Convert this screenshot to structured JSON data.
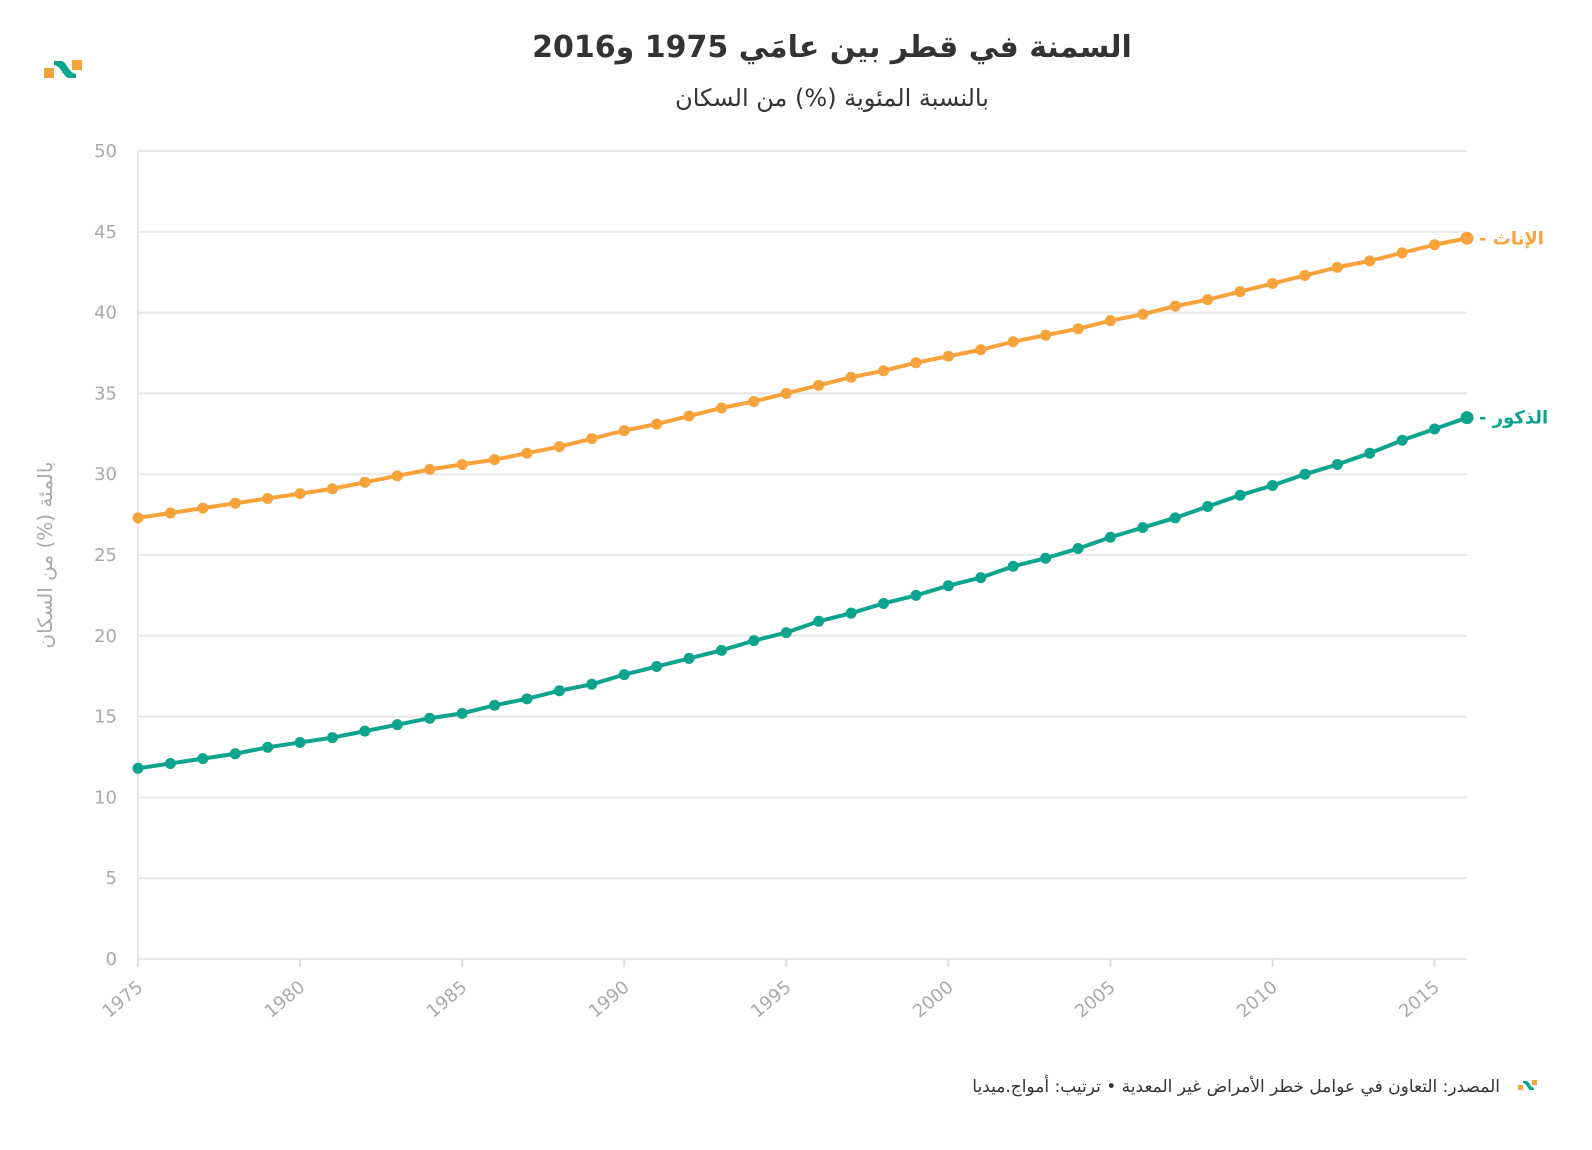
{
  "chart_data": {
    "type": "line",
    "title": "السمنة في قطر بين عامَي 1975 و2016",
    "subtitle": "بالنسبة المئوية (%) من السكان",
    "xlabel": "",
    "ylabel": "بالمئة (%) من السكان",
    "xlim": [
      1975,
      2016
    ],
    "ylim": [
      0,
      50
    ],
    "yticks": [
      "0",
      "5",
      "10",
      "15",
      "20",
      "25",
      "30",
      "35",
      "40",
      "45",
      "50"
    ],
    "xticks": [
      "1975",
      "1980",
      "1985",
      "1990",
      "1995",
      "2000",
      "2005",
      "2010",
      "2015"
    ],
    "grid": true,
    "x": [
      1975,
      1976,
      1977,
      1978,
      1979,
      1980,
      1981,
      1982,
      1983,
      1984,
      1985,
      1986,
      1987,
      1988,
      1989,
      1990,
      1991,
      1992,
      1993,
      1994,
      1995,
      1996,
      1997,
      1998,
      1999,
      2000,
      2001,
      2002,
      2003,
      2004,
      2005,
      2006,
      2007,
      2008,
      2009,
      2010,
      2011,
      2012,
      2013,
      2014,
      2015,
      2016
    ],
    "series": [
      {
        "name": "الإناث",
        "color": "#f7a23b",
        "values": [
          27.3,
          27.6,
          27.9,
          28.2,
          28.5,
          28.8,
          29.1,
          29.5,
          29.9,
          30.3,
          30.6,
          30.9,
          31.3,
          31.7,
          32.2,
          32.7,
          33.1,
          33.6,
          34.1,
          34.5,
          35.0,
          35.5,
          36.0,
          36.4,
          36.9,
          37.3,
          37.7,
          38.2,
          38.6,
          39.0,
          39.5,
          39.9,
          40.4,
          40.8,
          41.3,
          41.8,
          42.3,
          42.8,
          43.2,
          43.7,
          44.2,
          44.6
        ]
      },
      {
        "name": "الذكور",
        "color": "#0ca48d",
        "values": [
          11.8,
          12.1,
          12.4,
          12.7,
          13.1,
          13.4,
          13.7,
          14.1,
          14.5,
          14.9,
          15.2,
          15.7,
          16.1,
          16.6,
          17.0,
          17.6,
          18.1,
          18.6,
          19.1,
          19.7,
          20.2,
          20.9,
          21.4,
          22.0,
          22.5,
          23.1,
          23.6,
          24.3,
          24.8,
          25.4,
          26.1,
          26.7,
          27.3,
          28.0,
          28.7,
          29.3,
          30.0,
          30.6,
          31.3,
          32.1,
          32.8,
          33.5
        ]
      }
    ],
    "source": "المصدر: التعاون في عوامل خطر الأمراض غير المعدية • ترتيب: أمواج.ميديا"
  }
}
